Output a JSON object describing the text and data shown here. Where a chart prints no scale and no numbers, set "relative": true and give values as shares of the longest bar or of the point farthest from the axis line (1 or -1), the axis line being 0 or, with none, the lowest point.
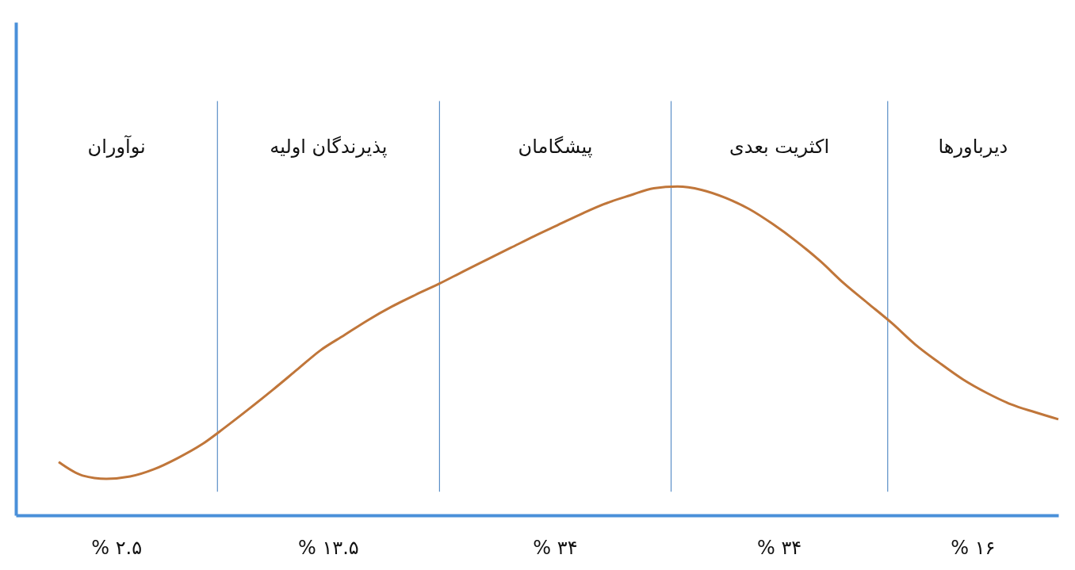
{
  "chart_data": {
    "type": "line",
    "relative": true,
    "categories": [
      null,
      null,
      null,
      null,
      null,
      null,
      null,
      null,
      null,
      null,
      null,
      null,
      null,
      null,
      null,
      null,
      null,
      null,
      null,
      null,
      null,
      null,
      null,
      null,
      null,
      null,
      null,
      null,
      null,
      null,
      null,
      null,
      null,
      null,
      null,
      null,
      null,
      null,
      null,
      null,
      null,
      null,
      null
    ],
    "series": [
      {
        "color": "#c0763a",
        "values": [
          0.162,
          0.121,
          0.111,
          0.118,
          0.14,
          0.174,
          0.215,
          0.268,
          0.324,
          0.382,
          0.442,
          0.502,
          0.548,
          0.594,
          0.635,
          0.671,
          0.705,
          0.742,
          0.778,
          0.814,
          0.85,
          0.884,
          0.918,
          0.949,
          0.973,
          0.995,
          1.0,
          0.99,
          0.966,
          0.932,
          0.886,
          0.833,
          0.773,
          0.705,
          0.645,
          0.585,
          0.519,
          0.464,
          0.413,
          0.372,
          0.338,
          0.314,
          0.292
        ]
      }
    ],
    "annotations": [
      "نوآوران",
      "پذیرندگان اولیه",
      "پیشگامان",
      "اکثریت بعدی",
      "دیرباورها",
      "% ۲.۵",
      "% ۱۳.۵",
      "% ۳۴",
      "% ۳۴",
      "% ۱۶"
    ]
  }
}
